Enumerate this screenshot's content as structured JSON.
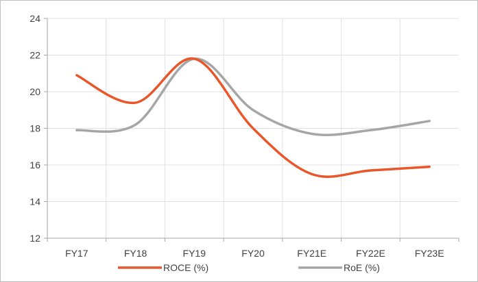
{
  "chart_data": {
    "type": "line",
    "categories": [
      "FY17",
      "FY18",
      "FY19",
      "FY20",
      "FY21E",
      "FY22E",
      "FY23E"
    ],
    "series": [
      {
        "name": "ROCE (%)",
        "color": "#e8562a",
        "values": [
          20.9,
          19.4,
          21.8,
          18.0,
          15.5,
          15.7,
          15.9
        ]
      },
      {
        "name": "RoE (%)",
        "color": "#a6a6a6",
        "values": [
          17.9,
          18.2,
          21.8,
          19.0,
          17.7,
          17.9,
          18.4
        ]
      }
    ],
    "yticks": [
      "12",
      "14",
      "16",
      "18",
      "20",
      "22",
      "24"
    ],
    "ylim": [
      12,
      24
    ],
    "grid": true,
    "legend": "bottom",
    "title": "",
    "xlabel": "",
    "ylabel": ""
  }
}
